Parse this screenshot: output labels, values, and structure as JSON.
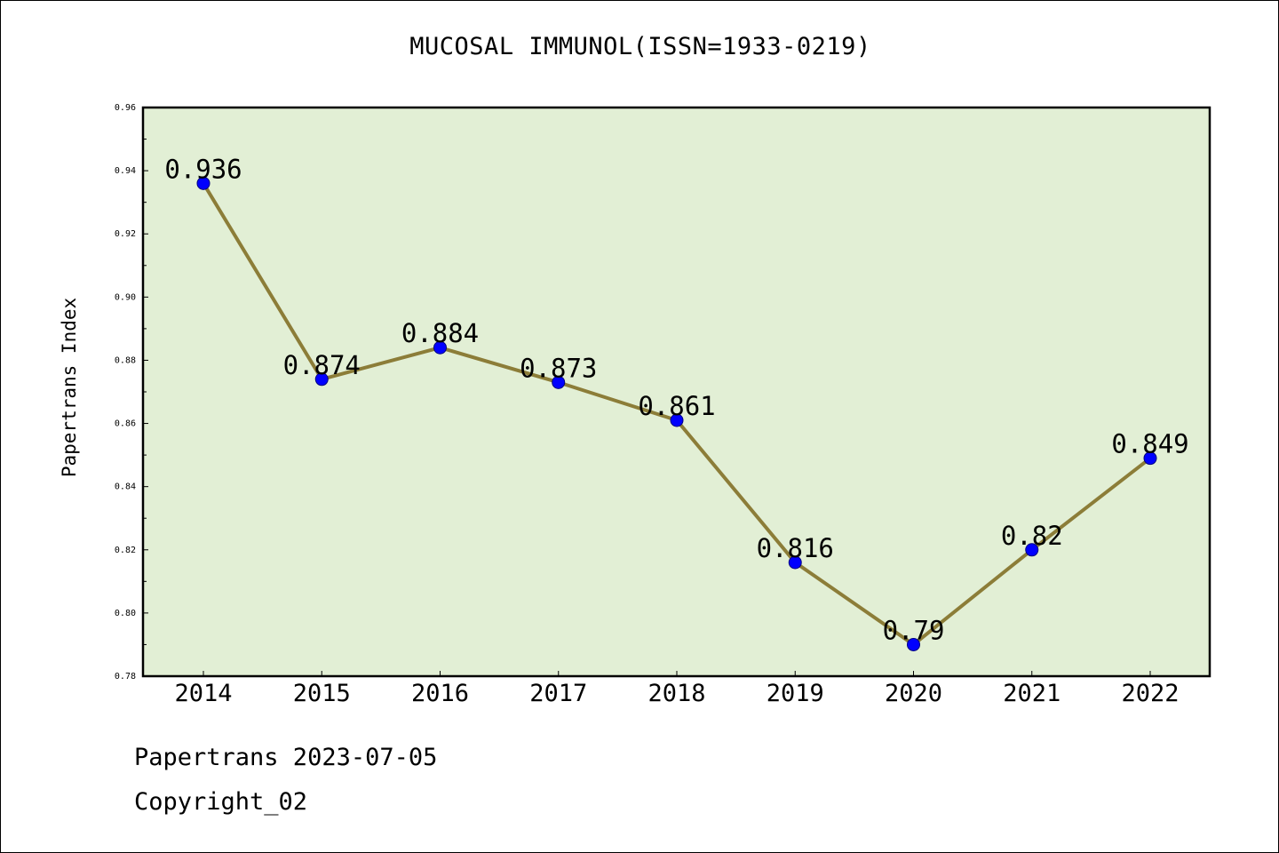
{
  "chart_data": {
    "type": "line",
    "title": "MUCOSAL IMMUNOL(ISSN=1933-0219)",
    "xlabel": "",
    "ylabel": "Papertrans Index",
    "categories": [
      "2014",
      "2015",
      "2016",
      "2017",
      "2018",
      "2019",
      "2020",
      "2021",
      "2022"
    ],
    "series": [
      {
        "values": [
          0.936,
          0.874,
          0.884,
          0.873,
          0.861,
          0.816,
          0.79,
          0.82,
          0.849
        ],
        "labels": [
          "0.936",
          "0.874",
          "0.884",
          "0.873",
          "0.861",
          "0.816",
          "0.79",
          "0.82",
          "0.849"
        ]
      }
    ],
    "ylim": [
      0.78,
      0.96
    ],
    "yticks": [
      0.78,
      0.8,
      0.82,
      0.84,
      0.86,
      0.88,
      0.9,
      0.92,
      0.94,
      0.96
    ],
    "ytick_labels": [
      "0.78",
      "0.80",
      "0.82",
      "0.84",
      "0.86",
      "0.88",
      "0.90",
      "0.92",
      "0.94",
      "0.96"
    ],
    "grid": false,
    "legend": "none",
    "colors": {
      "plot_background": "#e2efd5",
      "line": "#8c7d38",
      "marker": "#0000ff",
      "marker_edge": "#000080",
      "axes": "#000000"
    }
  },
  "footer": {
    "date_text": "Papertrans 2023-07-05",
    "copyright_text": "Copyright_02"
  }
}
